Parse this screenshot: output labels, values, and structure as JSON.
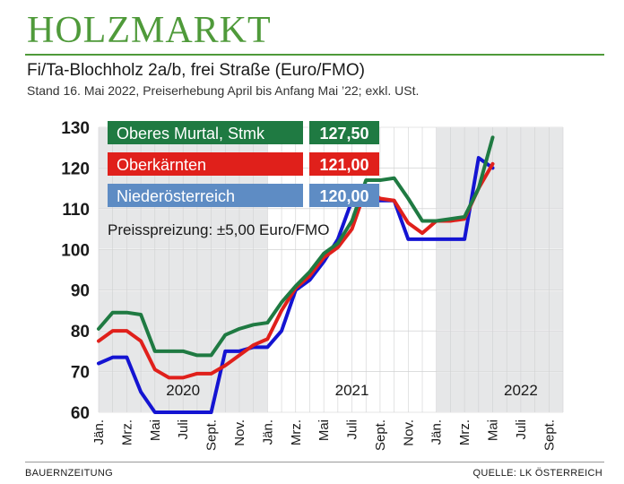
{
  "masthead": "HOLZMARKT",
  "footer": {
    "left": "BAUERNZEITUNG",
    "right": "QUELLE: LK ÖSTERREICH"
  },
  "chart_data": {
    "type": "line",
    "title": "Fi/Ta-Blochholz 2a/b, frei Straße (Euro/FMO)",
    "subtitle": "Stand 16. Mai 2022, Preiserhebung April bis Anfang Mai ’22; exkl. USt.",
    "annotation": "Preisspreizung: ±5,00 Euro/FMO",
    "ylim": [
      60,
      130
    ],
    "yticks": [
      60,
      70,
      80,
      90,
      100,
      110,
      120,
      130
    ],
    "xticks": [
      "Jän.",
      "Mrz.",
      "Mai",
      "Juli",
      "Sept.",
      "Nov.",
      "Jän.",
      "Mrz.",
      "Mai",
      "Juli",
      "Sept.",
      "Nov.",
      "Jän.",
      "Mrz.",
      "Mai",
      "Juli",
      "Sept."
    ],
    "year_labels": [
      "2020",
      "2021",
      "2022"
    ],
    "grid": true,
    "legend_position": "top-left",
    "series": [
      {
        "name": "Oberes Murtal, Stmk",
        "latest": "127,50",
        "color": "#1f7a42",
        "values": [
          80.5,
          84.5,
          84.5,
          84.0,
          75.0,
          75.0,
          75.0,
          74.0,
          74.0,
          79.0,
          80.5,
          81.5,
          82.0,
          87.0,
          91.0,
          94.5,
          99.0,
          101.5,
          107.0,
          117.0,
          117.0,
          117.5,
          112.5,
          107.0,
          107.0,
          107.5,
          108.0,
          115.0,
          127.5
        ]
      },
      {
        "name": "Oberkärnten",
        "latest": "121,00",
        "color": "#e0201b",
        "values": [
          77.5,
          80.0,
          80.0,
          77.5,
          70.5,
          68.5,
          68.5,
          69.5,
          69.5,
          71.5,
          74.0,
          76.5,
          78.0,
          85.0,
          90.5,
          93.5,
          98.0,
          100.5,
          105.0,
          115.0,
          112.5,
          112.0,
          106.5,
          104.0,
          107.0,
          107.0,
          107.5,
          115.0,
          121.0
        ]
      },
      {
        "name": "Niederösterreich",
        "latest": "120,00",
        "color": "#1414d2",
        "values": [
          72.0,
          73.5,
          73.5,
          65.0,
          60.0,
          60.0,
          60.0,
          60.0,
          60.0,
          75.0,
          75.0,
          76.0,
          76.0,
          80.0,
          90.0,
          92.5,
          97.0,
          102.5,
          112.0,
          112.0,
          112.0,
          112.0,
          102.5,
          102.5,
          102.5,
          102.5,
          102.5,
          122.5,
          120.0
        ]
      }
    ]
  }
}
